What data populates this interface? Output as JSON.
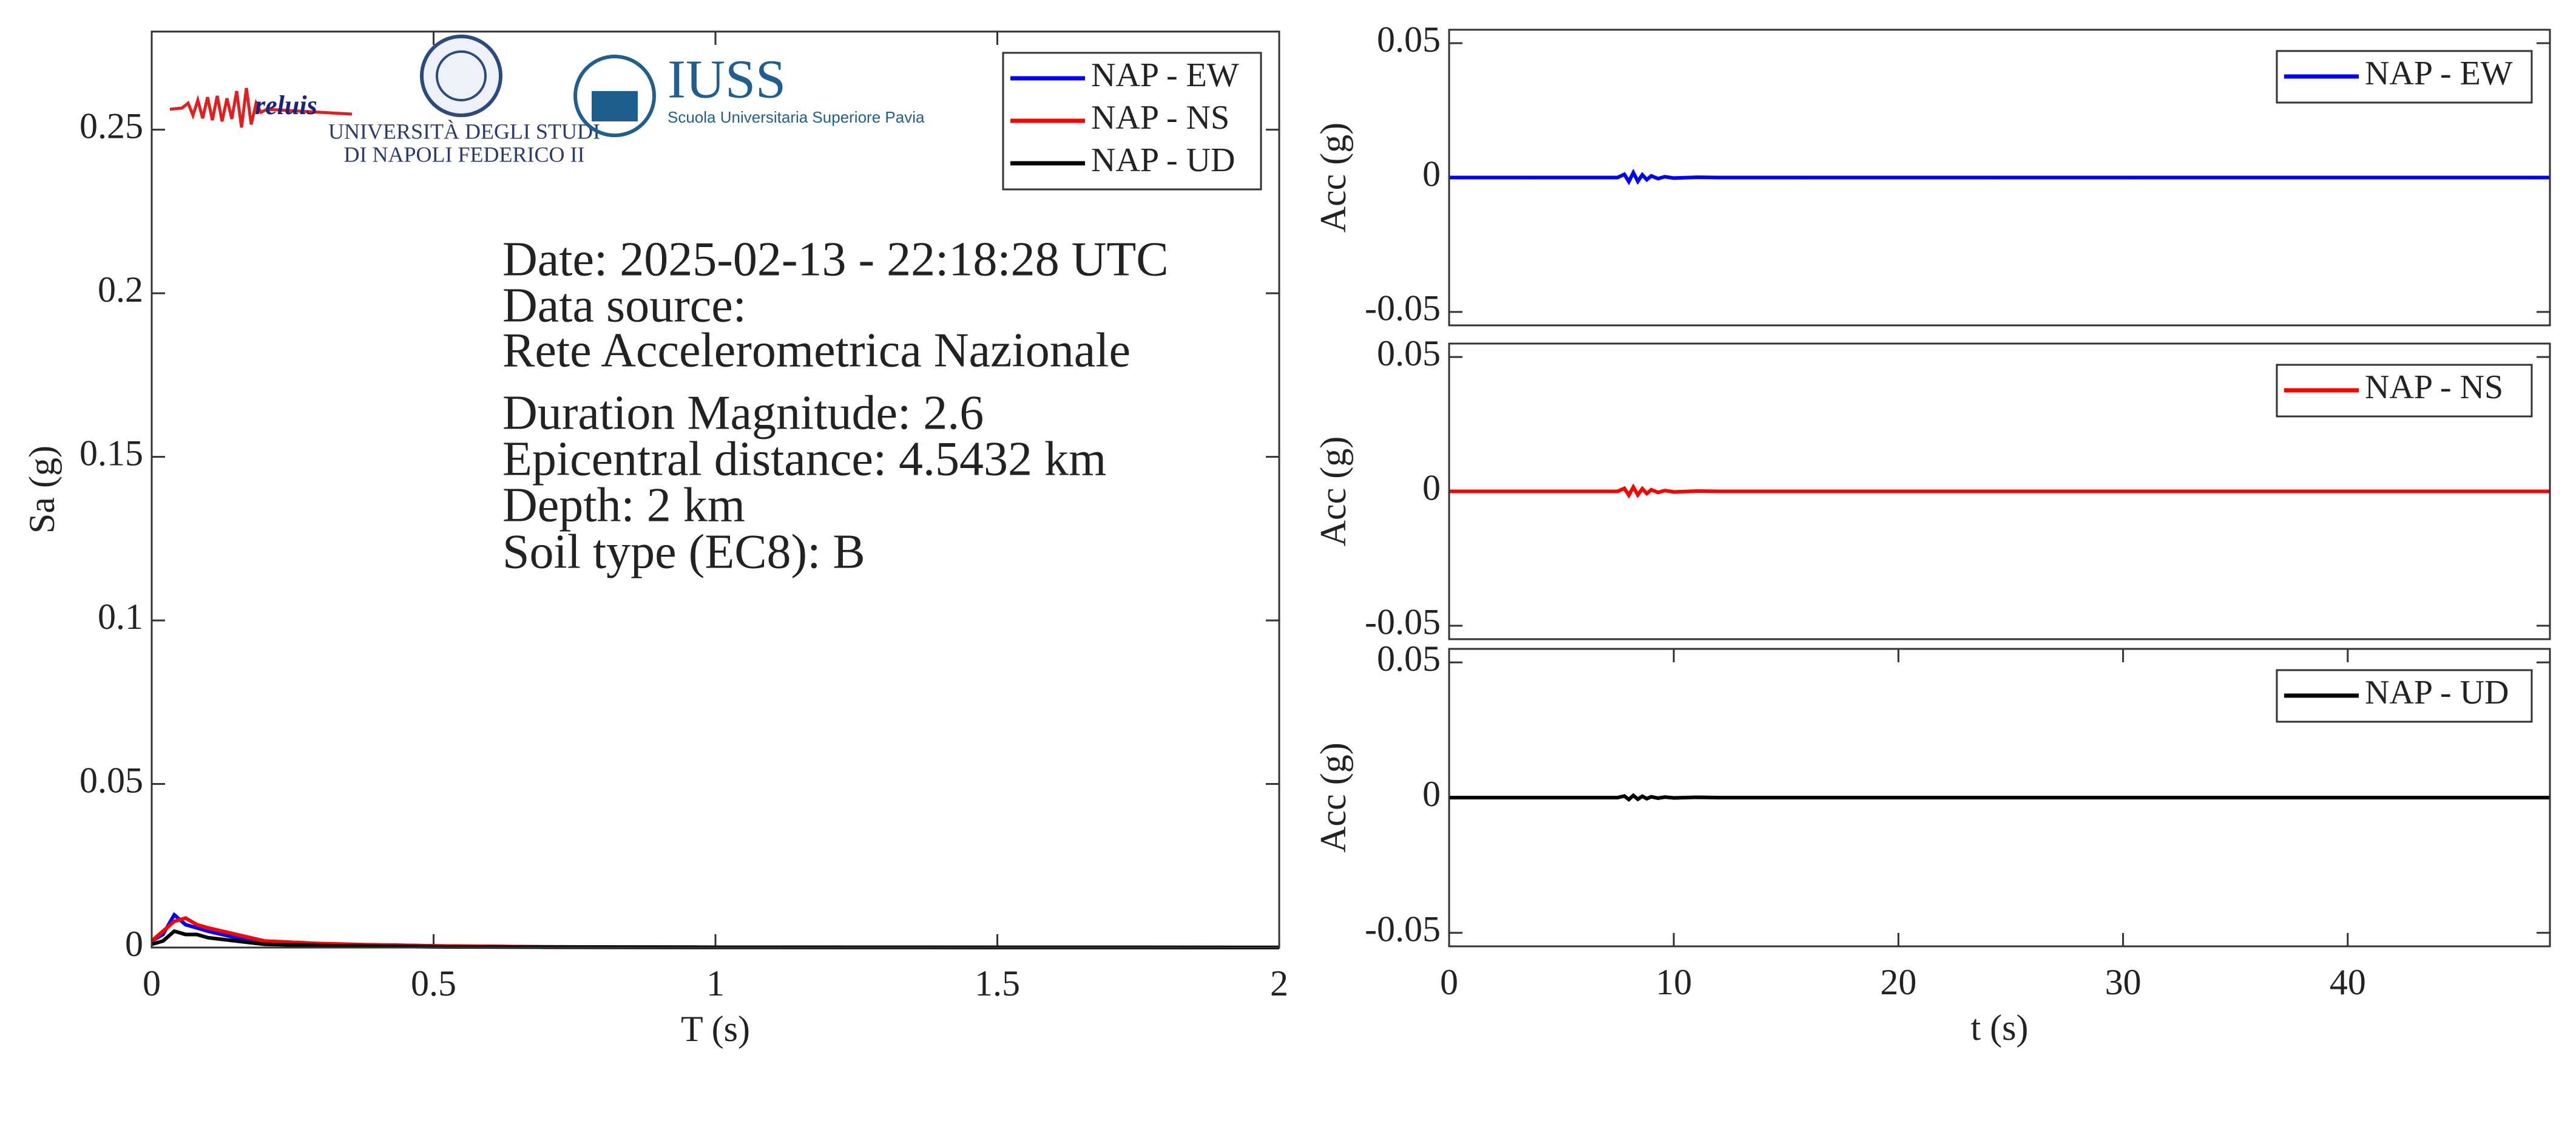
{
  "logos": {
    "reluis": "reluis",
    "unina_line1": "UNIVERSITÀ DEGLI STUDI",
    "unina_line2": "DI NAPOLI FEDERICO II",
    "iuss": "IUSS",
    "iuss_sub": "Scuola Universitaria Superiore Pavia"
  },
  "chart_data": [
    {
      "type": "line",
      "xlabel": "T (s)",
      "ylabel": "Sa (g)",
      "x": [
        0,
        0.02,
        0.04,
        0.06,
        0.08,
        0.1,
        0.15,
        0.2,
        0.3,
        0.4,
        0.5,
        0.7,
        1,
        1.5,
        2
      ],
      "series": [
        {
          "name": "NAP - EW",
          "color": "#0000ff",
          "values": [
            0.002,
            0.004,
            0.01,
            0.007,
            0.006,
            0.005,
            0.003,
            0.0015,
            0.001,
            0.0008,
            0.0005,
            0.0002,
            0.0001,
            5e-05,
            3e-05
          ]
        },
        {
          "name": "NAP - NS",
          "color": "#ff0000",
          "values": [
            0.002,
            0.005,
            0.008,
            0.009,
            0.007,
            0.006,
            0.004,
            0.002,
            0.0012,
            0.0008,
            0.0005,
            0.0002,
            0.0001,
            5e-05,
            3e-05
          ]
        },
        {
          "name": "NAP - UD",
          "color": "#000000",
          "values": [
            0.001,
            0.002,
            0.005,
            0.004,
            0.004,
            0.003,
            0.002,
            0.001,
            0.0006,
            0.0004,
            0.0002,
            0.0001,
            5e-05,
            3e-05,
            2e-05
          ]
        }
      ],
      "xlim": [
        0,
        2
      ],
      "ylim": [
        0,
        0.28
      ],
      "xticks": [
        0,
        0.5,
        1,
        1.5,
        2
      ],
      "yticks": [
        0,
        0.05,
        0.1,
        0.15,
        0.2,
        0.25
      ],
      "legend": "upper right",
      "annotations": [
        "Date: 2025-02-13 - 22:18:28 UTC",
        "Data source:",
        "Rete Accelerometrica Nazionale",
        "Duration Magnitude: 2.6",
        "Epicentral distance: 4.5432 km",
        "Depth: 2 km",
        "Soil type (EC8): B"
      ]
    },
    {
      "type": "line",
      "ylabel": "Acc (g)",
      "x": [
        0,
        7.5,
        7.8,
        8.0,
        8.2,
        8.4,
        8.6,
        8.8,
        9.0,
        9.3,
        9.6,
        10,
        11,
        12,
        49
      ],
      "series": [
        {
          "name": "NAP - EW",
          "color": "#0000ff",
          "values": [
            0,
            0,
            0.0012,
            -0.0015,
            0.0018,
            -0.0014,
            0.001,
            -0.0008,
            0.0006,
            -0.0004,
            0.0003,
            -0.0002,
            0.0001,
            0,
            0
          ]
        }
      ],
      "xlim": [
        0,
        49
      ],
      "ylim": [
        -0.055,
        0.055
      ],
      "yticks": [
        -0.05,
        0,
        0.05
      ],
      "legend": "upper right"
    },
    {
      "type": "line",
      "ylabel": "Acc (g)",
      "x": [
        0,
        7.5,
        7.8,
        8.0,
        8.2,
        8.4,
        8.6,
        8.8,
        9.0,
        9.3,
        9.6,
        10,
        11,
        12,
        49
      ],
      "series": [
        {
          "name": "NAP - NS",
          "color": "#ff0000",
          "values": [
            0,
            0,
            0.0011,
            -0.0014,
            0.0016,
            -0.0013,
            0.001,
            -0.0008,
            0.0006,
            -0.0004,
            0.0003,
            -0.0002,
            0.0001,
            0,
            0
          ]
        }
      ],
      "xlim": [
        0,
        49
      ],
      "ylim": [
        -0.055,
        0.055
      ],
      "yticks": [
        -0.05,
        0,
        0.05
      ],
      "legend": "upper right"
    },
    {
      "type": "line",
      "xlabel": "t (s)",
      "ylabel": "Acc (g)",
      "x": [
        0,
        7.5,
        7.8,
        8.0,
        8.2,
        8.4,
        8.6,
        8.8,
        9.0,
        9.3,
        9.6,
        10,
        11,
        12,
        49
      ],
      "series": [
        {
          "name": "NAP - UD",
          "color": "#000000",
          "values": [
            0,
            0,
            0.0006,
            -0.0007,
            0.0008,
            -0.0006,
            0.0005,
            -0.0004,
            0.0003,
            -0.0002,
            0.0002,
            -0.0001,
            0.0001,
            0,
            0
          ]
        }
      ],
      "xlim": [
        0,
        49
      ],
      "ylim": [
        -0.055,
        0.055
      ],
      "xticks": [
        0,
        10,
        20,
        30,
        40
      ],
      "yticks": [
        -0.05,
        0,
        0.05
      ],
      "legend": "upper right"
    }
  ]
}
